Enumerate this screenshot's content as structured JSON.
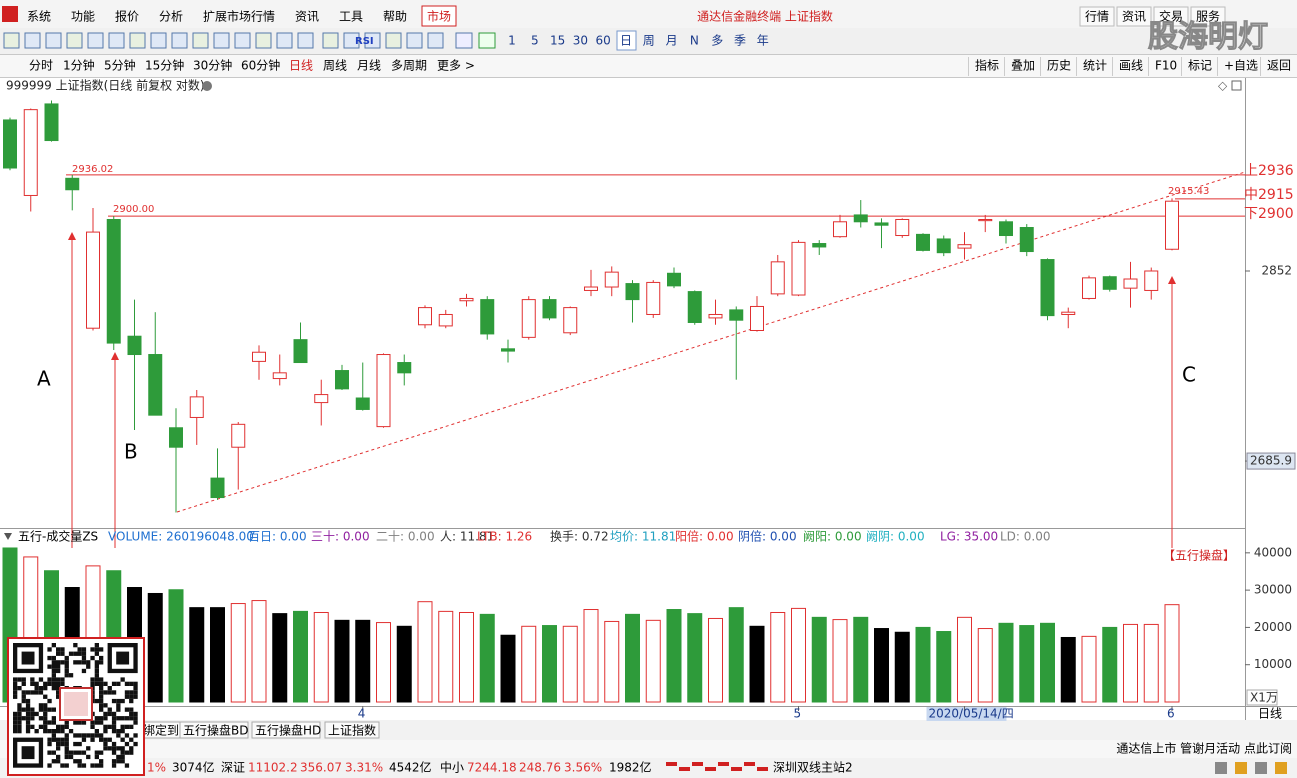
{
  "menu": {
    "items": [
      "系统",
      "功能",
      "报价",
      "分析",
      "扩展市场行情",
      "资讯",
      "工具",
      "帮助"
    ],
    "active": "市场",
    "title": "通达信金融终端 上证指数",
    "right": [
      "行情",
      "资讯",
      "交易",
      "服务"
    ]
  },
  "watermark": "股海明灯",
  "toolbar": {
    "rsi": "RSI",
    "periods": [
      "1",
      "5",
      "15",
      "30",
      "60",
      "日",
      "周",
      "月",
      "N",
      "多",
      "季",
      "年"
    ]
  },
  "period_bar": {
    "items": [
      "分时",
      "1分钟",
      "5分钟",
      "15分钟",
      "30分钟",
      "60分钟",
      "日线",
      "周线",
      "月线",
      "多周期",
      "更多 >"
    ],
    "right": [
      "指标",
      "叠加",
      "历史",
      "统计",
      "画线",
      "F10",
      "标记",
      "+自选",
      "返回"
    ]
  },
  "chart": {
    "type": "candlestick",
    "title": "999999 上证指数(日线 前复权 对数)",
    "up_color": "#e03030",
    "down_color": "#2e9b3a",
    "categories": [
      null,
      null,
      null,
      null,
      null,
      null,
      null,
      null,
      null,
      null,
      null,
      null,
      null,
      null,
      null,
      null,
      null,
      "4",
      null,
      null,
      null,
      null,
      null,
      null,
      null,
      null,
      null,
      null,
      null,
      null,
      null,
      null,
      null,
      null,
      null,
      null,
      null,
      null,
      "5",
      null,
      null,
      null,
      null,
      null,
      null,
      null,
      "2020/05/14/四",
      null,
      null,
      null,
      null,
      null,
      null,
      null,
      null,
      null,
      "6"
    ],
    "ohlc": [
      [
        2984,
        2986,
        2940,
        2942
      ],
      [
        2918,
        2994,
        2904,
        2993
      ],
      [
        2998,
        3001,
        2965,
        2966
      ],
      [
        2933,
        2936.02,
        2905,
        2923
      ],
      [
        2802,
        2907,
        2800,
        2886
      ],
      [
        2897,
        2900,
        2783,
        2789
      ],
      [
        2795,
        2827,
        2713,
        2779
      ],
      [
        2779,
        2816,
        2726,
        2726
      ],
      [
        2715,
        2732,
        2641,
        2698
      ],
      [
        2724,
        2748,
        2700,
        2742
      ],
      [
        2671,
        2697,
        2652,
        2654
      ],
      [
        2698,
        2720,
        2661,
        2718
      ],
      [
        2773,
        2787,
        2757,
        2781
      ],
      [
        2758,
        2779,
        2752,
        2763
      ],
      [
        2792,
        2807,
        2772,
        2772
      ],
      [
        2737,
        2757,
        2717,
        2744
      ],
      [
        2765,
        2770,
        2748,
        2749
      ],
      [
        2741,
        2772,
        2730,
        2731
      ],
      [
        2716,
        2780,
        2715,
        2779
      ],
      [
        2772,
        2779,
        2752,
        2763
      ],
      [
        2805,
        2822,
        2802,
        2820
      ],
      [
        2804,
        2818,
        2802,
        2814
      ],
      [
        2826,
        2832,
        2821,
        2828
      ],
      [
        2827,
        2830,
        2792,
        2797
      ],
      [
        2784,
        2792,
        2772,
        2782
      ],
      [
        2794,
        2830,
        2792,
        2827
      ],
      [
        2827,
        2830,
        2809,
        2811
      ],
      [
        2798,
        2821,
        2796,
        2820
      ],
      [
        2835,
        2853,
        2830,
        2838
      ],
      [
        2838,
        2856,
        2830,
        2851
      ],
      [
        2841,
        2844,
        2807,
        2827
      ],
      [
        2814,
        2844,
        2811,
        2842
      ],
      [
        2850,
        2855,
        2837,
        2839
      ],
      [
        2834,
        2835,
        2805,
        2807
      ],
      [
        2811,
        2827,
        2805,
        2814
      ],
      [
        2818,
        2821,
        2757,
        2809
      ],
      [
        2800,
        2830,
        2799,
        2821
      ],
      [
        2832,
        2866,
        2830,
        2860
      ],
      [
        2831,
        2879,
        2830,
        2877
      ],
      [
        2876,
        2879,
        2866,
        2873
      ],
      [
        2882,
        2901,
        2881,
        2895
      ],
      [
        2901,
        2914,
        2890,
        2895
      ],
      [
        2894,
        2898,
        2872,
        2892
      ],
      [
        2883,
        2898,
        2881,
        2897
      ],
      [
        2884,
        2885,
        2869,
        2870
      ],
      [
        2880,
        2883,
        2865,
        2868
      ],
      [
        2872,
        2886,
        2862,
        2875
      ],
      [
        2896,
        2901,
        2886,
        2897
      ],
      [
        2895,
        2897,
        2876,
        2883
      ],
      [
        2890,
        2893,
        2865,
        2869
      ],
      [
        2862,
        2863,
        2809,
        2813
      ],
      [
        2814,
        2820,
        2802,
        2816
      ],
      [
        2828,
        2848,
        2827,
        2846
      ],
      [
        2847,
        2848,
        2834,
        2836
      ],
      [
        2837,
        2860,
        2820,
        2845
      ],
      [
        2835,
        2855,
        2827,
        2852
      ],
      [
        2871,
        2915.43,
        2870,
        2913
      ]
    ],
    "ylim": [
      2627.4,
      3005.8
    ],
    "yticks": [
      2852,
      2685.9
    ],
    "levels": [
      {
        "value": 2936,
        "label": "上2936"
      },
      {
        "value": 2915,
        "label": "中2915"
      },
      {
        "value": 2900,
        "label": "下2900"
      }
    ],
    "annotations": [
      "2936.02",
      "2900.00",
      "2915.43",
      "A",
      "B",
      "C",
      "【五行操盘】"
    ]
  },
  "volume": {
    "type": "bar",
    "title": "五行-成交量ZS",
    "stats": [
      "VOLUME: 260196048.00",
      "百日: 0.00",
      "三十: 0.00",
      "二十: 0.00",
      "人: 11.81",
      "LTB: 1.26",
      "换手: 0.72",
      "均价: 11.81",
      "阳倍: 0.00",
      "阴倍: 0.00",
      "阙阳: 0.00",
      "阙阴: 0.00",
      "LG: 35.00",
      "LD: 0.00"
    ],
    "stat_colors": [
      "#1e6fd0",
      "#1e6fd0",
      "#9020a0",
      "#808080",
      "#303030",
      "#e03030",
      "#303030",
      "#20a0c0",
      "#e03030",
      "#1e4fb0",
      "#2e9b3a",
      "#20b0c0",
      "#9020a0",
      "#808080"
    ],
    "values": [
      41300,
      38900,
      35200,
      30700,
      36500,
      35200,
      30700,
      29100,
      30100,
      25300,
      25300,
      26400,
      27200,
      23700,
      24300,
      24000,
      21900,
      21900,
      21300,
      20300,
      26900,
      24300,
      24000,
      23500,
      17900,
      20300,
      20500,
      20300,
      24800,
      21600,
      23500,
      21900,
      24800,
      23700,
      22400,
      25300,
      20300,
      24000,
      25100,
      22700,
      22100,
      22700,
      19700,
      18700,
      20000,
      18900,
      22700,
      19700,
      21100,
      20500,
      21100,
      17300,
      17600,
      20000,
      20800,
      20800,
      26100
    ],
    "colors": [
      "#2e9b3a",
      "#e03030",
      "#2e9b3a",
      "#000000",
      "#e03030",
      "#2e9b3a",
      "#000000",
      "#000000",
      "#2e9b3a",
      "#000000",
      "#000000",
      "#e03030",
      "#e03030",
      "#000000",
      "#2e9b3a",
      "#e03030",
      "#000000",
      "#000000",
      "#e03030",
      "#000000",
      "#e03030",
      "#e03030",
      "#e03030",
      "#2e9b3a",
      "#000000",
      "#e03030",
      "#2e9b3a",
      "#e03030",
      "#e03030",
      "#e03030",
      "#2e9b3a",
      "#e03030",
      "#2e9b3a",
      "#2e9b3a",
      "#e03030",
      "#2e9b3a",
      "#000000",
      "#e03030",
      "#e03030",
      "#2e9b3a",
      "#e03030",
      "#2e9b3a",
      "#000000",
      "#000000",
      "#2e9b3a",
      "#2e9b3a",
      "#e03030",
      "#e03030",
      "#2e9b3a",
      "#2e9b3a",
      "#2e9b3a",
      "#000000",
      "#e03030",
      "#2e9b3a",
      "#e03030",
      "#e03030",
      "#e03030"
    ],
    "ylim": [
      0,
      42100
    ],
    "yticks": [
      10000,
      20000,
      30000,
      40000
    ],
    "unit": "X1万"
  },
  "axis_right_label": "日线",
  "tabs": [
    "绑定到",
    "五行操盘BD",
    "五行操盘HD",
    "上证指数"
  ],
  "status": "通达信上市 管谢月活动 点此订阅",
  "ticker": {
    "items": [
      "1%",
      "3074亿",
      "深证",
      "11102.2",
      "356.07",
      "3.31%",
      "4542亿",
      "中小",
      "7244.18",
      "248.76",
      "3.56%",
      "1982亿",
      "深圳双线主站2"
    ],
    "colors": [
      "#e03030",
      "#000000",
      "#000000",
      "#e03030",
      "#e03030",
      "#e03030",
      "#000000",
      "#000000",
      "#e03030",
      "#e03030",
      "#e03030",
      "#000000",
      "#000000"
    ]
  }
}
